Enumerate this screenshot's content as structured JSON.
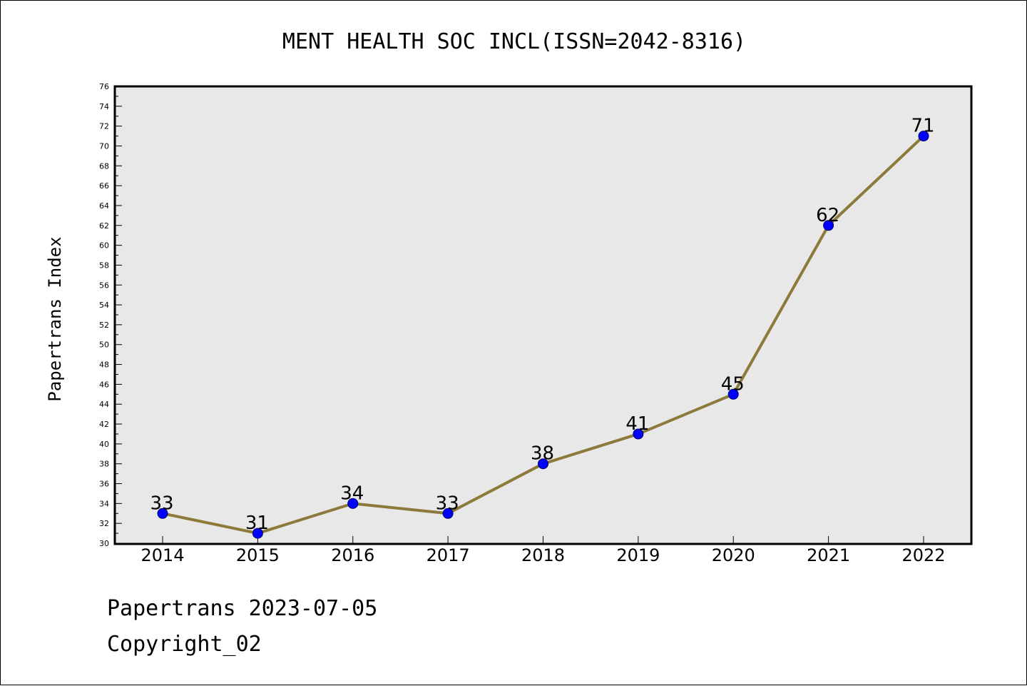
{
  "footer": {
    "line1": "Papertrans 2023-07-05",
    "line2": "Copyright_02"
  },
  "chart_data": {
    "type": "line",
    "title": "MENT HEALTH SOC INCL(ISSN=2042-8316)",
    "xlabel": "",
    "ylabel": "Papertrans Index",
    "categories": [
      "2014",
      "2015",
      "2016",
      "2017",
      "2018",
      "2019",
      "2020",
      "2021",
      "2022"
    ],
    "series": [
      {
        "values": [
          33,
          31,
          34,
          33,
          38,
          41,
          45,
          62,
          71
        ]
      }
    ],
    "ylim": [
      30,
      76
    ],
    "ytick_step": 2,
    "grid": false,
    "plot_background": "#e8e8e8",
    "line_color": "#8c7a3a",
    "marker_color": "#0000ff",
    "data_labels": true
  }
}
